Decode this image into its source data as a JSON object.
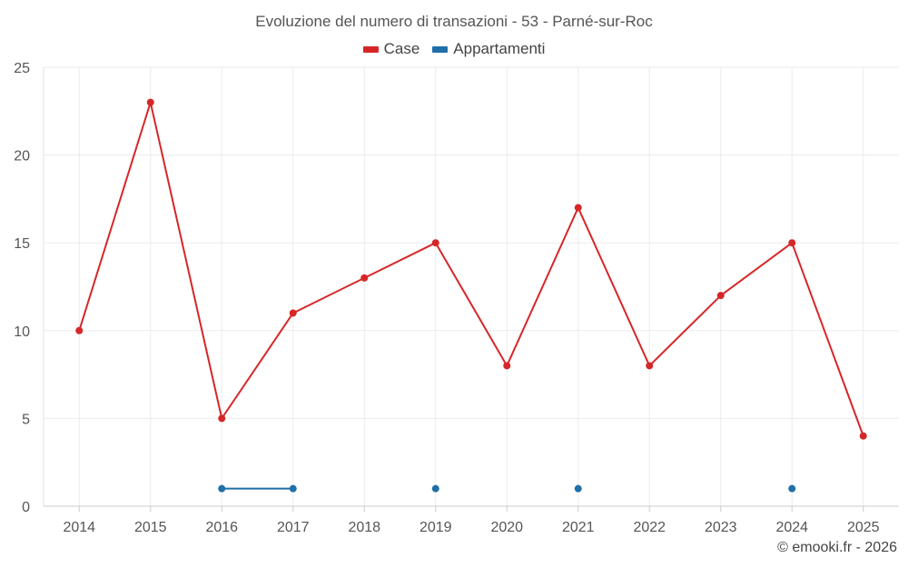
{
  "title": "Evoluzione del numero di transazioni - 53 - Parné-sur-Roc",
  "credit": "© emooki.fr - 2026",
  "chart_data": {
    "type": "line",
    "title": "Evoluzione del numero di transazioni - 53 - Parné-sur-Roc",
    "xlabel": "",
    "ylabel": "",
    "categories": [
      "2014",
      "2015",
      "2016",
      "2017",
      "2018",
      "2019",
      "2020",
      "2021",
      "2022",
      "2023",
      "2024",
      "2025"
    ],
    "ylim": [
      0,
      25
    ],
    "yticks": [
      0,
      5,
      10,
      15,
      20,
      25
    ],
    "grid": true,
    "legend_position": "top-center",
    "series": [
      {
        "name": "Case",
        "color": "#d62728",
        "values": [
          10,
          23,
          5,
          11,
          13,
          15,
          8,
          17,
          8,
          12,
          15,
          4
        ]
      },
      {
        "name": "Appartamenti",
        "color": "#1f6fa8",
        "values": [
          null,
          null,
          1,
          1,
          null,
          1,
          null,
          1,
          null,
          null,
          1,
          null
        ]
      }
    ]
  }
}
